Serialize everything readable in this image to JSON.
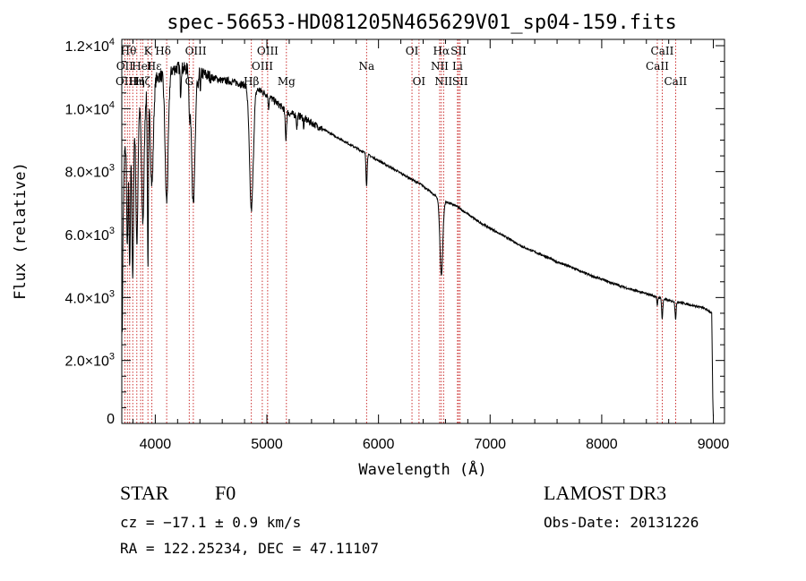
{
  "chart_data": {
    "type": "line",
    "title": "spec-56653-HD081205N465629V01_sp04-159.fits",
    "xlabel": "Wavelength (Å)",
    "ylabel": "Flux (relative)",
    "xlim": [
      3700,
      9100
    ],
    "ylim": [
      0,
      12200
    ],
    "x_ticks": [
      4000,
      5000,
      6000,
      7000,
      8000,
      9000
    ],
    "x_tick_labels": [
      "4000",
      "5000",
      "6000",
      "7000",
      "8000",
      "9000"
    ],
    "y_ticks": [
      0,
      2000,
      4000,
      6000,
      8000,
      10000,
      12000
    ],
    "y_tick_labels": [
      {
        "mant": "0",
        "exp": ""
      },
      {
        "mant": "2.0×10",
        "exp": "3"
      },
      {
        "mant": "4.0×10",
        "exp": "3"
      },
      {
        "mant": "6.0×10",
        "exp": "3"
      },
      {
        "mant": "8.0×10",
        "exp": "3"
      },
      {
        "mant": "1.0×10",
        "exp": "4"
      },
      {
        "mant": "1.2×10",
        "exp": "4"
      }
    ],
    "continuum": [
      [
        3705,
        3000
      ],
      [
        3712,
        6500
      ],
      [
        3725,
        8600
      ],
      [
        3760,
        9200
      ],
      [
        3800,
        9600
      ],
      [
        3850,
        10000
      ],
      [
        3900,
        10400
      ],
      [
        3950,
        10700
      ],
      [
        4000,
        10950
      ],
      [
        4050,
        11050
      ],
      [
        4100,
        11150
      ],
      [
        4200,
        11300
      ],
      [
        4300,
        11250
      ],
      [
        4400,
        11150
      ],
      [
        4500,
        11000
      ],
      [
        4600,
        10900
      ],
      [
        4700,
        10850
      ],
      [
        4800,
        10750
      ],
      [
        4900,
        10650
      ],
      [
        5000,
        10450
      ],
      [
        5100,
        10150
      ],
      [
        5200,
        9850
      ],
      [
        5300,
        9750
      ],
      [
        5400,
        9550
      ],
      [
        5500,
        9350
      ],
      [
        5600,
        9150
      ],
      [
        5700,
        8950
      ],
      [
        5800,
        8750
      ],
      [
        5900,
        8550
      ],
      [
        6000,
        8350
      ],
      [
        6100,
        8150
      ],
      [
        6200,
        7950
      ],
      [
        6300,
        7750
      ],
      [
        6400,
        7550
      ],
      [
        6500,
        7250
      ],
      [
        6600,
        7050
      ],
      [
        6700,
        6900
      ],
      [
        6800,
        6650
      ],
      [
        6900,
        6400
      ],
      [
        7000,
        6200
      ],
      [
        7100,
        6000
      ],
      [
        7200,
        5800
      ],
      [
        7300,
        5600
      ],
      [
        7400,
        5450
      ],
      [
        7500,
        5300
      ],
      [
        7600,
        5130
      ],
      [
        7700,
        5000
      ],
      [
        7800,
        4850
      ],
      [
        7900,
        4700
      ],
      [
        8000,
        4580
      ],
      [
        8100,
        4450
      ],
      [
        8200,
        4330
      ],
      [
        8300,
        4220
      ],
      [
        8400,
        4120
      ],
      [
        8500,
        4020
      ],
      [
        8600,
        3900
      ],
      [
        8700,
        3850
      ],
      [
        8800,
        3760
      ],
      [
        8900,
        3680
      ],
      [
        8950,
        3600
      ],
      [
        8985,
        3500
      ],
      [
        8990,
        2200
      ],
      [
        8995,
        800
      ],
      [
        9000,
        200
      ]
    ],
    "absorption": [
      [
        3750,
        3500,
        6
      ],
      [
        3771,
        4500,
        6
      ],
      [
        3798,
        5000,
        7
      ],
      [
        3835,
        4200,
        9
      ],
      [
        3889,
        3900,
        11
      ],
      [
        3934,
        5500,
        5
      ],
      [
        3970,
        3200,
        13
      ],
      [
        4102,
        4100,
        14
      ],
      [
        4227,
        800,
        4
      ],
      [
        4308,
        1300,
        6
      ],
      [
        4341,
        4300,
        15
      ],
      [
        4384,
        600,
        4
      ],
      [
        4405,
        500,
        4
      ],
      [
        4861,
        3900,
        17
      ],
      [
        5015,
        400,
        4
      ],
      [
        5170,
        900,
        6
      ],
      [
        5269,
        400,
        4
      ],
      [
        5330,
        300,
        3
      ],
      [
        5893,
        1000,
        5
      ],
      [
        6563,
        2400,
        13
      ],
      [
        8498,
        300,
        4
      ],
      [
        8542,
        650,
        5
      ],
      [
        8662,
        550,
        5
      ]
    ],
    "line_markers": [
      3727,
      3750,
      3771,
      3798,
      3835,
      3869,
      3889,
      3934,
      3970,
      4102,
      4304,
      4341,
      4861,
      4959,
      5007,
      5175,
      5893,
      6300,
      6363,
      6548,
      6563,
      6583,
      6708,
      6717,
      6731,
      8498,
      8542,
      8662
    ],
    "line_labels": [
      {
        "text": "Hθ",
        "wl": 3760,
        "row": 1
      },
      {
        "text": "K",
        "wl": 3934,
        "row": 1
      },
      {
        "text": "Hδ",
        "wl": 4070,
        "row": 1
      },
      {
        "text": "OIII",
        "wl": 4363,
        "row": 1
      },
      {
        "text": "OIII",
        "wl": 5007,
        "row": 1
      },
      {
        "text": "OI",
        "wl": 6300,
        "row": 1
      },
      {
        "text": "Hα",
        "wl": 6563,
        "row": 1
      },
      {
        "text": "SII",
        "wl": 6717,
        "row": 1
      },
      {
        "text": "CaII",
        "wl": 8542,
        "row": 1
      },
      {
        "text": "OII",
        "wl": 3727,
        "row": 2
      },
      {
        "text": "HeI",
        "wl": 3880,
        "row": 2
      },
      {
        "text": "Hε",
        "wl": 3990,
        "row": 2
      },
      {
        "text": "OIII",
        "wl": 4959,
        "row": 2
      },
      {
        "text": "Na",
        "wl": 5893,
        "row": 2
      },
      {
        "text": "NII",
        "wl": 6548,
        "row": 2
      },
      {
        "text": "Li",
        "wl": 6708,
        "row": 2
      },
      {
        "text": "CaII",
        "wl": 8498,
        "row": 2
      },
      {
        "text": "OIII",
        "wl": 3740,
        "row": 3
      },
      {
        "text": "Hη",
        "wl": 3835,
        "row": 3
      },
      {
        "text": "Hζ",
        "wl": 3889,
        "row": 3
      },
      {
        "text": "G",
        "wl": 4304,
        "row": 3
      },
      {
        "text": "Hβ",
        "wl": 4861,
        "row": 3
      },
      {
        "text": "Mg",
        "wl": 5175,
        "row": 3
      },
      {
        "text": "OI",
        "wl": 6363,
        "row": 3
      },
      {
        "text": "NII",
        "wl": 6583,
        "row": 3
      },
      {
        "text": "SII",
        "wl": 6731,
        "row": 3
      },
      {
        "text": "CaII",
        "wl": 8662,
        "row": 3
      }
    ]
  },
  "footer": {
    "object_class": "STAR",
    "subclass": "F0",
    "redshift": "cz = −17.1 ± 0.9 km/s",
    "coords": "RA = 122.25234, DEC =  47.11107",
    "survey": "LAMOST DR3",
    "obs_date": "Obs-Date: 20131226"
  },
  "colors": {
    "spectrum": "#000000",
    "marker": "#c00000",
    "axes": "#000000",
    "background": "#ffffff"
  }
}
